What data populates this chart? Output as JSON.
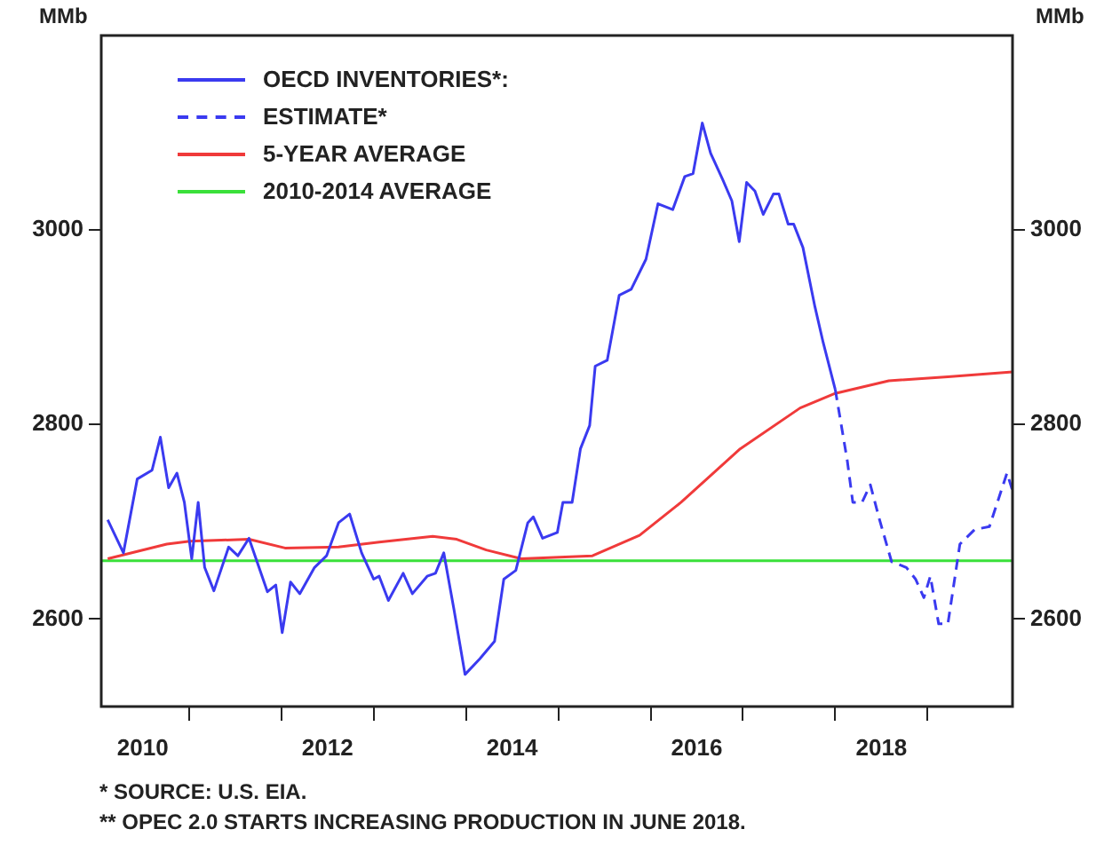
{
  "chart_data": {
    "type": "line",
    "ylabel": "MMb",
    "y2label": "MMb",
    "legend": "top left",
    "grid": false,
    "marker": "none",
    "xlim": [
      2010.05,
      2019.92
    ],
    "xticks": [
      {
        "value": 2010.5,
        "label": "2010"
      },
      {
        "value": 2011,
        "label": null
      },
      {
        "value": 2012,
        "label": null
      },
      {
        "value": 2012.5,
        "label": "2012"
      },
      {
        "value": 2013,
        "label": null
      },
      {
        "value": 2014,
        "label": null
      },
      {
        "value": 2014.5,
        "label": "2014"
      },
      {
        "value": 2015,
        "label": null
      },
      {
        "value": 2016,
        "label": null
      },
      {
        "value": 2016.5,
        "label": "2016"
      },
      {
        "value": 2017,
        "label": null
      },
      {
        "value": 2018,
        "label": null
      },
      {
        "value": 2018.5,
        "label": "2018"
      },
      {
        "value": 2019,
        "label": null
      }
    ],
    "ylim": [
      2510,
      3200
    ],
    "yticks": [
      2600,
      2800,
      3000
    ],
    "y2lim": [
      2510,
      3200
    ],
    "y2ticks": [
      2600,
      2800,
      3000
    ],
    "series": [
      {
        "name": "OECD INVENTORIES*:",
        "color": "#3a3af0",
        "line_style": "solid",
        "x": [
          2010.12,
          2010.29,
          2010.44,
          2010.6,
          2010.69,
          2010.78,
          2010.87,
          2010.95,
          2011.03,
          2011.1,
          2011.17,
          2011.27,
          2011.43,
          2011.53,
          2011.65,
          2011.85,
          2011.94,
          2012.01,
          2012.1,
          2012.2,
          2012.36,
          2012.49,
          2012.62,
          2012.74,
          2012.87,
          2013,
          2013.06,
          2013.16,
          2013.32,
          2013.42,
          2013.58,
          2013.67,
          2013.76,
          2013.87,
          2013.99,
          2014.15,
          2014.31,
          2014.41,
          2014.54,
          2014.67,
          2014.73,
          2014.83,
          2014.99,
          2015.05,
          2015.15,
          2015.24,
          2015.34,
          2015.4,
          2015.53,
          2015.66,
          2015.79,
          2015.95,
          2016.08,
          2016.24,
          2016.37,
          2016.46,
          2016.56,
          2016.65,
          2016.78,
          2016.88,
          2016.96,
          2017.04,
          2017.13,
          2017.22,
          2017.33,
          2017.39,
          2017.49,
          2017.55,
          2017.65,
          2017.78,
          2017.87,
          2018
        ],
        "values": [
          2702,
          2668,
          2744,
          2753,
          2787,
          2735,
          2750,
          2720,
          2662,
          2720,
          2653,
          2629,
          2674,
          2665,
          2683,
          2628,
          2635,
          2586,
          2638,
          2626,
          2653,
          2665,
          2699,
          2708,
          2668,
          2641,
          2644,
          2619,
          2647,
          2626,
          2644,
          2647,
          2668,
          2610,
          2543,
          2559,
          2577,
          2641,
          2650,
          2699,
          2705,
          2683,
          2689,
          2720,
          2720,
          2775,
          2799,
          2860,
          2866,
          2933,
          2939,
          2970,
          3027,
          3021,
          3055,
          3058,
          3110,
          3079,
          3052,
          3030,
          2988,
          3049,
          3040,
          3016,
          3037,
          3037,
          3006,
          3006,
          2982,
          2921,
          2884,
          2836
        ]
      },
      {
        "name": "ESTIMATE*",
        "color": "#3a3af0",
        "line_style": "dashed",
        "x": [
          2018,
          2018.13,
          2018.19,
          2018.29,
          2018.38,
          2018.48,
          2018.61,
          2018.77,
          2018.87,
          2018.96,
          2019.03,
          2019.12,
          2019.22,
          2019.35,
          2019.51,
          2019.67,
          2019.86,
          2019.92
        ],
        "values": [
          2836,
          2763,
          2720,
          2720,
          2738,
          2702,
          2659,
          2653,
          2641,
          2622,
          2644,
          2595,
          2595,
          2677,
          2692,
          2695,
          2750,
          2732
        ]
      },
      {
        "name": "5-YEAR AVERAGE",
        "color": "#f03a3a",
        "line_style": "solid",
        "x": [
          2010.12,
          2010.76,
          2011.01,
          2011.65,
          2012.04,
          2012.62,
          2013.06,
          2013.64,
          2013.9,
          2014.22,
          2014.6,
          2015.37,
          2015.88,
          2016.33,
          2016.97,
          2017.62,
          2018,
          2018.58,
          2019.22,
          2019.92
        ],
        "values": [
          2662,
          2677,
          2680,
          2682,
          2673,
          2674,
          2679,
          2685,
          2682,
          2671,
          2662,
          2665,
          2686,
          2720,
          2775,
          2817,
          2832,
          2845,
          2849,
          2854
        ]
      },
      {
        "name": "2010-2014 AVERAGE",
        "color": "#3ae03a",
        "line_style": "solid",
        "x": [
          2010.05,
          2019.92
        ],
        "values": [
          2660,
          2660
        ]
      }
    ],
    "annotations": [
      "* SOURCE: U.S. EIA.",
      "** OPEC 2.0 STARTS INCREASING PRODUCTION IN JUNE 2018."
    ]
  }
}
